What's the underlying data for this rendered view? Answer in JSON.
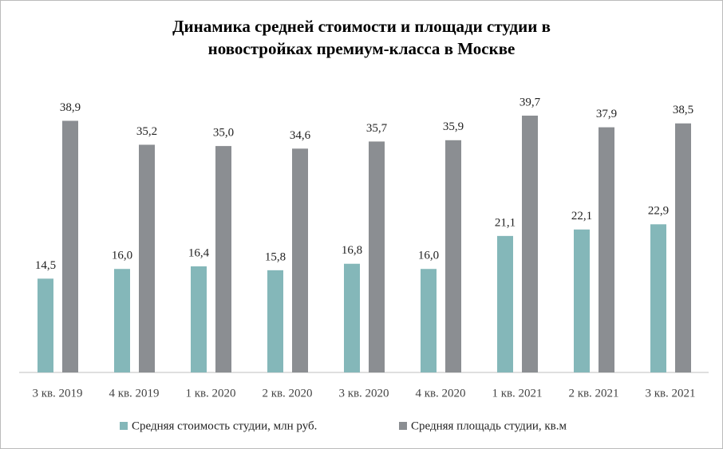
{
  "chart_data": {
    "type": "bar",
    "title": [
      "Динамика средней стоимости и площади студии в",
      "новостройках премиум-класса в Москве"
    ],
    "categories": [
      "3 кв. 2019",
      "4 кв. 2019",
      "1 кв. 2020",
      "2 кв. 2020",
      "3 кв. 2020",
      "4 кв. 2020",
      "1 кв. 2021",
      "2 кв. 2021",
      "3 кв. 2021"
    ],
    "series": [
      {
        "name": "Средняя стоимость студии, млн руб.",
        "color": "#84b7b9",
        "values": [
          14.5,
          16.0,
          16.4,
          15.8,
          16.8,
          16.0,
          21.1,
          22.1,
          22.9
        ],
        "value_labels": [
          "14,5",
          "16,0",
          "16,4",
          "15,8",
          "16,8",
          "16,0",
          "21,1",
          "22,1",
          "22,9"
        ]
      },
      {
        "name": "Средняя площадь студии, кв.м",
        "color": "#8b8e92",
        "values": [
          38.9,
          35.2,
          35.0,
          34.6,
          35.7,
          35.9,
          39.7,
          37.9,
          38.5
        ],
        "value_labels": [
          "38,9",
          "35,2",
          "35,0",
          "34,6",
          "35,7",
          "35,9",
          "39,7",
          "37,9",
          "38,5"
        ]
      }
    ],
    "ylim": [
      0,
      45
    ],
    "legend": "bottom"
  }
}
